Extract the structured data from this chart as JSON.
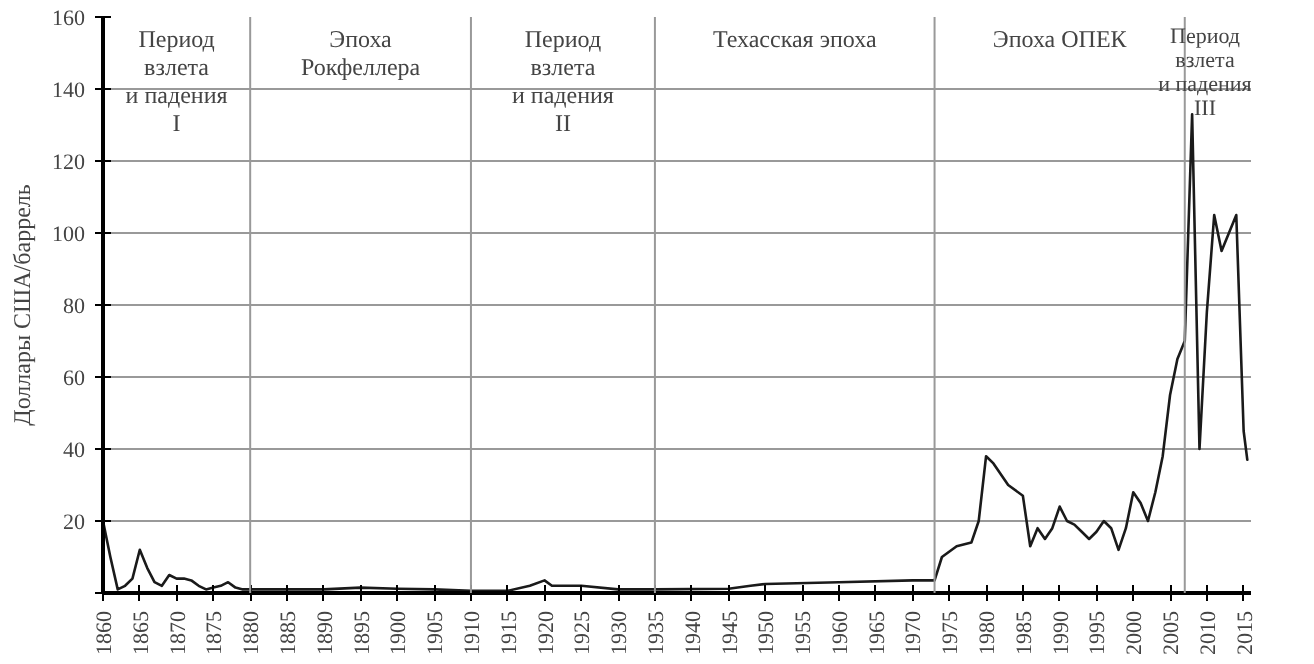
{
  "chart_data": {
    "type": "line",
    "ylabel": "Доллары США/баррель",
    "x": [
      1860,
      1861,
      1862,
      1863,
      1864,
      1865,
      1866,
      1867,
      1868,
      1869,
      1870,
      1871,
      1872,
      1873,
      1874,
      1875,
      1876,
      1877,
      1878,
      1879,
      1880,
      1885,
      1890,
      1895,
      1900,
      1905,
      1910,
      1915,
      1918,
      1920,
      1921,
      1925,
      1930,
      1935,
      1945,
      1948,
      1950,
      1960,
      1970,
      1973,
      1974,
      1976,
      1978,
      1979,
      1980,
      1981,
      1982,
      1983,
      1985,
      1986,
      1987,
      1988,
      1989,
      1990,
      1991,
      1992,
      1993,
      1994,
      1995,
      1996,
      1997,
      1998,
      1999,
      2000,
      2001,
      2002,
      2003,
      2004,
      2005,
      2006,
      2007,
      2008,
      2009,
      2010,
      2011,
      2012,
      2013,
      2014,
      2015,
      2015.5
    ],
    "series": [
      {
        "color": "#1a1a1a",
        "values": [
          20,
          10,
          1,
          2,
          4,
          12,
          7,
          3,
          2,
          5,
          4,
          4,
          3.5,
          2,
          1,
          1.5,
          2,
          3,
          1.5,
          1,
          1,
          1,
          1,
          1.5,
          1.2,
          1,
          0.6,
          0.6,
          2,
          3.5,
          2,
          2,
          1,
          1,
          1.2,
          2,
          2.5,
          3,
          3.5,
          3.5,
          10,
          13,
          14,
          20,
          38,
          36,
          33,
          30,
          27,
          13,
          18,
          15,
          18,
          24,
          20,
          19,
          17,
          15,
          17,
          20,
          18,
          12,
          18,
          28,
          25,
          20,
          28,
          38,
          55,
          65,
          70,
          133,
          40,
          78,
          105,
          95,
          100,
          105,
          45,
          37
        ]
      }
    ],
    "xlim": [
      1860,
      2016
    ],
    "ylim": [
      0,
      160
    ],
    "xticks": [
      1860,
      1865,
      1870,
      1875,
      1880,
      1885,
      1890,
      1895,
      1900,
      1905,
      1910,
      1915,
      1920,
      1925,
      1930,
      1935,
      1940,
      1945,
      1950,
      1955,
      1960,
      1965,
      1970,
      1975,
      1980,
      1985,
      1990,
      1995,
      2000,
      2005,
      2010,
      2015
    ],
    "yticks": [
      {
        "value": 0,
        "label": null
      },
      20,
      40,
      60,
      80,
      100,
      120,
      140,
      160
    ],
    "grid": "y",
    "marker": "none",
    "line_style": "solid",
    "ref_lines": [
      {
        "axis": "x",
        "value": 1880,
        "color": "#999999"
      },
      {
        "axis": "x",
        "value": 1910,
        "color": "#999999"
      },
      {
        "axis": "x",
        "value": 1935,
        "color": "#999999"
      },
      {
        "axis": "x",
        "value": 1973,
        "color": "#999999"
      },
      {
        "axis": "x",
        "value": 2007,
        "color": "#999999"
      }
    ],
    "annotations": [
      "Период\nвзлета\nи падения\nI",
      "Эпоха\nРокфеллера",
      "Период\nвзлета\nи падения\nII",
      "Техасская эпоха",
      "Эпоха ОПЕК",
      "Период\nвзлета\nи падения\nIII"
    ]
  }
}
